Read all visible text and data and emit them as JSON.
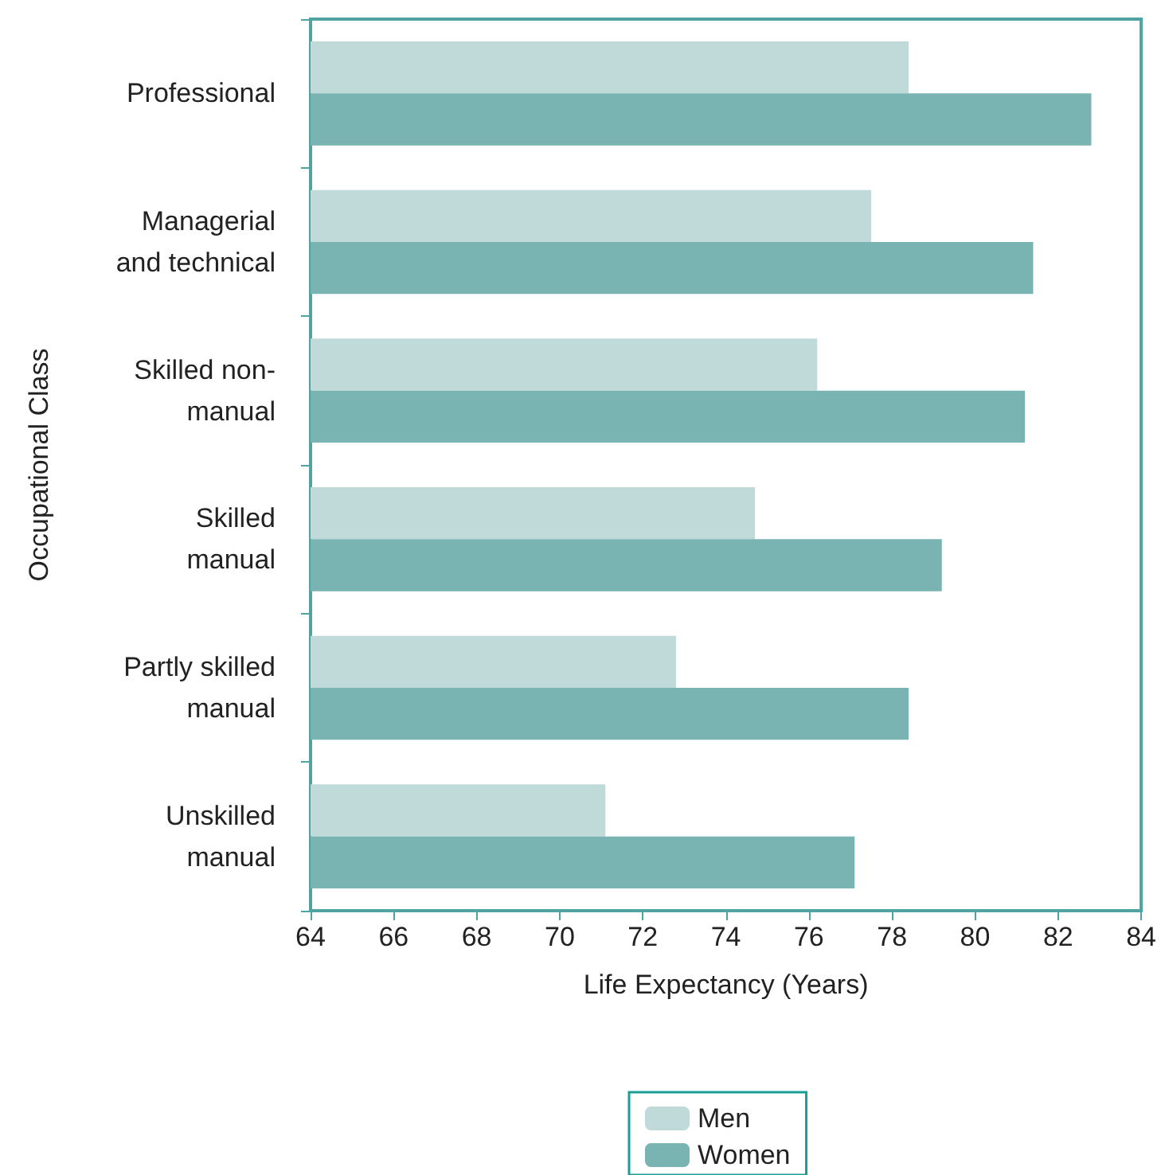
{
  "chart_data": {
    "type": "bar",
    "orientation": "horizontal",
    "xlabel": "Life Expectancy (Years)",
    "ylabel": "Occupational Class",
    "categories": [
      "Professional",
      "Managerial\nand technical",
      "Skilled non-\nmanual",
      "Skilled\nmanual",
      "Partly skilled\nmanual",
      "Unskilled\nmanual"
    ],
    "series": [
      {
        "name": "Men",
        "color": "#bfdad9",
        "values": [
          78.4,
          77.5,
          76.2,
          74.7,
          72.8,
          71.1
        ]
      },
      {
        "name": "Women",
        "color": "#79b4b2",
        "values": [
          82.8,
          81.4,
          81.2,
          79.2,
          78.4,
          77.1
        ]
      }
    ],
    "xlim": [
      64,
      84
    ],
    "xticks": [
      64,
      66,
      68,
      70,
      72,
      74,
      76,
      78,
      80,
      82,
      84
    ],
    "grid": false,
    "legend": "bottom"
  }
}
